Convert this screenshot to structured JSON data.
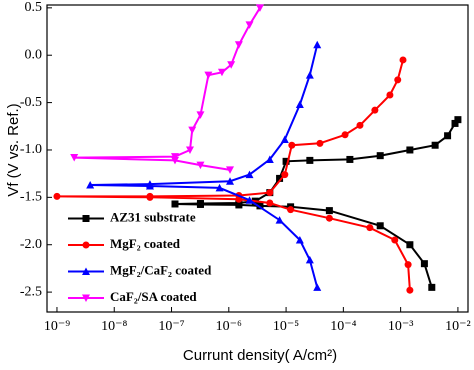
{
  "chart_data": {
    "type": "line",
    "xlabel": "Currunt density( A/cm²)",
    "ylabel": "Vf (V vs. Ref.)",
    "xscale": "log",
    "xlim": [
      6.7e-10,
      0.015
    ],
    "ylim": [
      -2.71,
      0.53
    ],
    "xticks": [
      {
        "value": 1e-09,
        "label": "10⁻⁹"
      },
      {
        "value": 1e-08,
        "label": "10⁻⁸"
      },
      {
        "value": 1e-07,
        "label": "10⁻⁷"
      },
      {
        "value": 1e-06,
        "label": "10⁻⁶"
      },
      {
        "value": 1e-05,
        "label": "10⁻⁵"
      },
      {
        "value": 0.0001,
        "label": "10⁻⁴"
      },
      {
        "value": 0.001,
        "label": "10⁻³"
      },
      {
        "value": 0.01,
        "label": "10⁻²"
      }
    ],
    "yticks": [
      0.5,
      {
        "value": 0,
        "label": "0.0"
      },
      -0.5,
      {
        "value": -1,
        "label": "-1.0"
      },
      -1.5,
      {
        "value": -2,
        "label": "-2.0"
      },
      -2.5
    ],
    "legend": "lower left",
    "series": [
      {
        "name": "AZ31 substrate",
        "color": "#000000",
        "marker": "square",
        "x": [
          0.0035,
          0.0026,
          0.00145,
          0.00044,
          5.7e-05,
          1.2e-05,
          3.5e-06,
          1.5e-06,
          3.2e-07,
          1.15e-07,
          3.2e-07,
          1.5e-06,
          2.9e-06,
          5.2e-06,
          7.7e-06,
          1e-05,
          2.6e-05,
          0.00013,
          0.00044,
          0.00145,
          0.004,
          0.0066,
          0.0089,
          0.01
        ],
        "values": [
          -2.45,
          -2.2,
          -2.0,
          -1.8,
          -1.64,
          -1.6,
          -1.59,
          -1.58,
          -1.575,
          -1.57,
          -1.565,
          -1.56,
          -1.54,
          -1.45,
          -1.3,
          -1.12,
          -1.11,
          -1.1,
          -1.06,
          -1.0,
          -0.95,
          -0.85,
          -0.72,
          -0.68
        ]
      },
      {
        "name": "MgF₂ coated",
        "color": "#ff0000",
        "marker": "circle",
        "x": [
          0.00145,
          0.00135,
          0.00079,
          0.00029,
          5.7e-05,
          1.2e-05,
          5.2e-06,
          1.5e-06,
          4.2e-08,
          1e-09,
          4.2e-08,
          1.5e-06,
          5.2e-06,
          9.5e-06,
          1.26e-05,
          3.9e-05,
          0.000107,
          0.000195,
          0.000355,
          0.00065,
          0.00089,
          0.0011
        ],
        "values": [
          -2.48,
          -2.21,
          -1.95,
          -1.82,
          -1.72,
          -1.63,
          -1.56,
          -1.52,
          -1.5,
          -1.49,
          -1.49,
          -1.48,
          -1.45,
          -1.26,
          -0.95,
          -0.93,
          -0.84,
          -0.74,
          -0.58,
          -0.42,
          -0.26,
          -0.05
        ]
      },
      {
        "name": "MgF₂/CaF₂ coated",
        "color": "#0000ff",
        "marker": "triangle-up",
        "x": [
          3.5e-05,
          2.6e-05,
          1.74e-05,
          7.7e-06,
          2.3e-06,
          6.9e-07,
          4.2e-08,
          3.8e-09,
          4.2e-08,
          1.05e-06,
          2.3e-06,
          5.2e-06,
          9.5e-06,
          1.74e-05,
          2.6e-05,
          3.5e-05
        ],
        "values": [
          -2.45,
          -2.16,
          -1.95,
          -1.74,
          -1.53,
          -1.4,
          -1.38,
          -1.37,
          -1.36,
          -1.33,
          -1.26,
          -1.1,
          -0.89,
          -0.52,
          -0.21,
          0.11
        ]
      },
      {
        "name": "CaF₂/SA coated",
        "color": "#ff00ff",
        "marker": "triangle-down",
        "x": [
          1.05e-06,
          3.2e-07,
          1.15e-07,
          2e-09,
          1.15e-07,
          2.1e-07,
          2.3e-07,
          3.2e-07,
          4.4e-07,
          7.6e-07,
          1.1e-06,
          1.5e-06,
          2.3e-06,
          3.5e-06
        ],
        "values": [
          -1.21,
          -1.16,
          -1.11,
          -1.08,
          -1.07,
          -1.0,
          -0.79,
          -0.63,
          -0.21,
          -0.18,
          -0.1,
          0.11,
          0.32,
          0.5
        ]
      }
    ]
  }
}
